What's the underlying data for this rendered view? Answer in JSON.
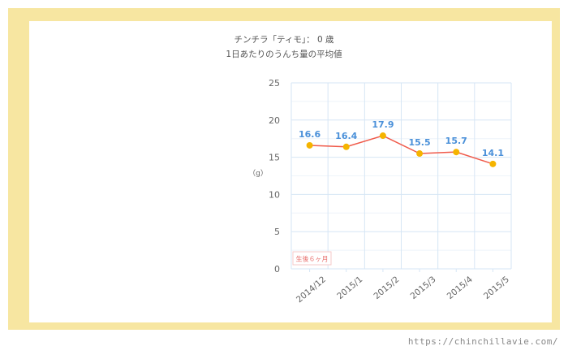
{
  "title": "チンチラ「ティモ」： 0 歳",
  "subtitle": "1日あたりのうんち量の平均値",
  "footer_url": "https://chinchillavie.com/",
  "chart_data": {
    "type": "line",
    "categories": [
      "2014/12",
      "2015/1",
      "2015/2",
      "2015/3",
      "2015/4",
      "2015/5"
    ],
    "series": [
      {
        "values": [
          16.6,
          16.4,
          17.9,
          15.5,
          15.7,
          14.1
        ]
      }
    ],
    "ylabel": "（g）",
    "ylim": [
      0,
      25
    ],
    "yticks": [
      0,
      5,
      10,
      15,
      20,
      25
    ],
    "grid": true,
    "annotation": "生後６ヶ月",
    "colors": {
      "line": "#f05a4a",
      "marker": "#f5b400",
      "label": "#4a90d9",
      "grid": "#d6e6f5",
      "frame": "#f7e6a1"
    }
  }
}
